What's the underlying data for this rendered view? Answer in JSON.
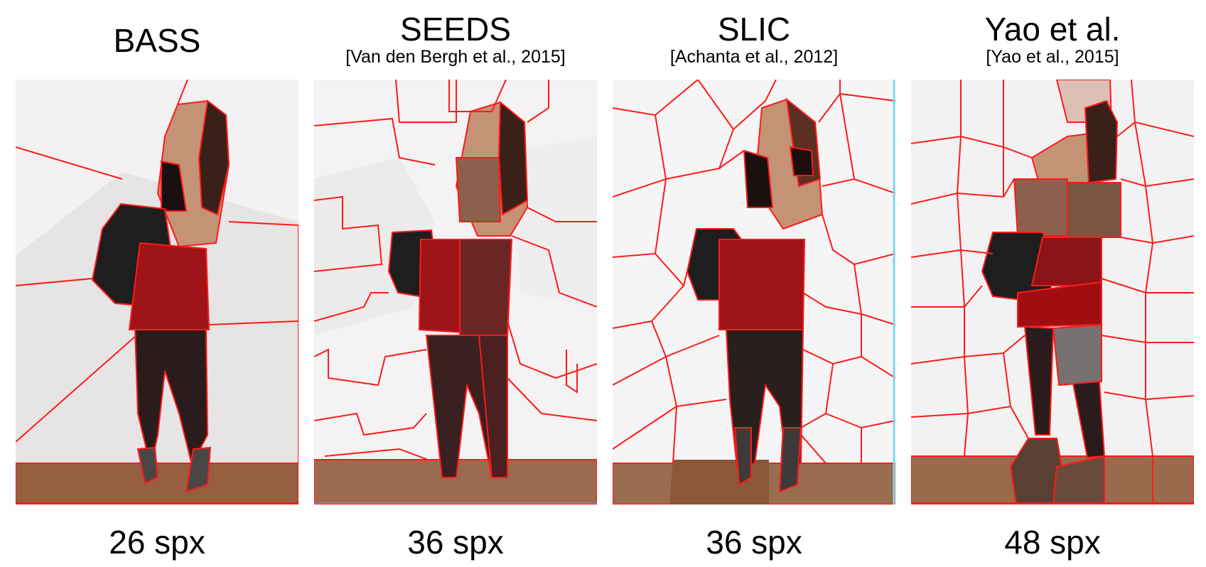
{
  "panels": [
    {
      "title": "BASS",
      "citation": "",
      "count": "26 spx"
    },
    {
      "title": "SEEDS",
      "citation": "[Van den Bergh et al., 2015]",
      "count": "36 spx"
    },
    {
      "title": "SLIC",
      "citation": "[Achanta et al., 2012]",
      "count": "36 spx"
    },
    {
      "title": "Yao et al.",
      "citation": "[Yao et al., 2015]",
      "count": "48 spx"
    }
  ],
  "colors": {
    "boundary": "#ff1a1a",
    "background": "#f2f0f0",
    "floor": "#9a6a4c",
    "skin": "#c49274",
    "hair": "#3a2018",
    "bag": "#1c1c1c",
    "skirt": "#9a1418",
    "legs": "#2a1e1e",
    "boots": "#4a4646"
  }
}
